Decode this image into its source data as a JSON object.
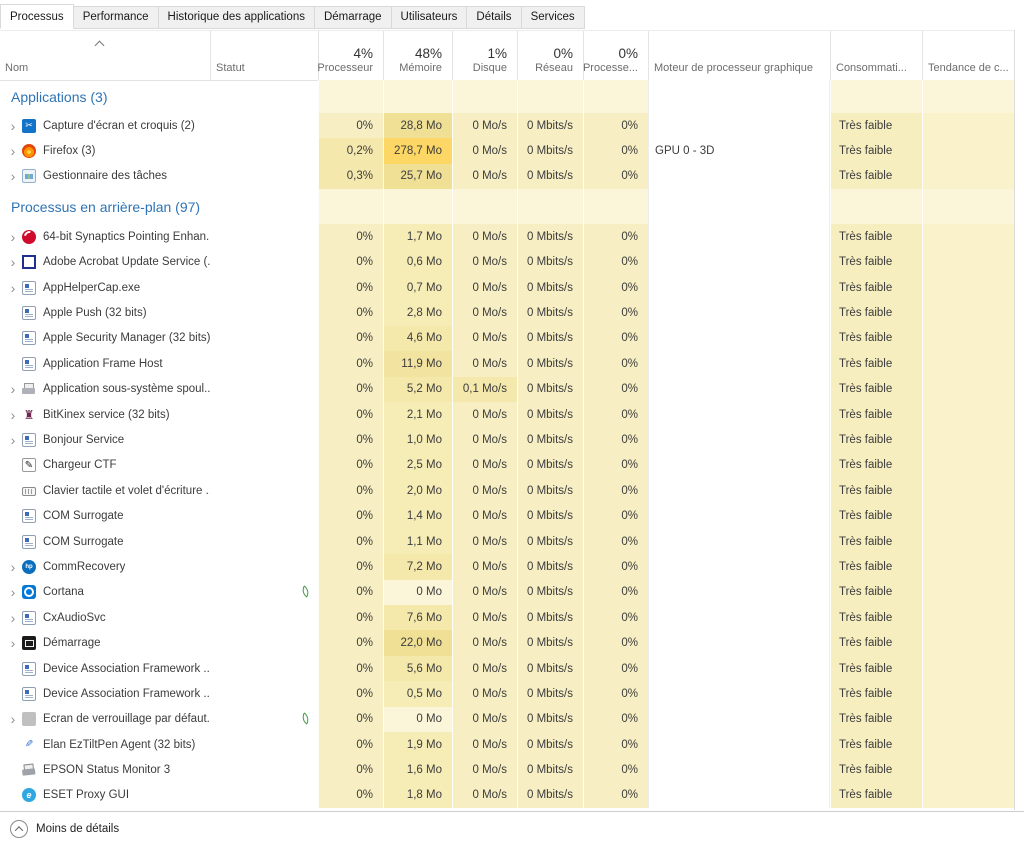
{
  "tabs": {
    "items": [
      {
        "label": "Processus",
        "active": true
      },
      {
        "label": "Performance",
        "active": false
      },
      {
        "label": "Historique des applications",
        "active": false
      },
      {
        "label": "Démarrage",
        "active": false
      },
      {
        "label": "Utilisateurs",
        "active": false
      },
      {
        "label": "Détails",
        "active": false
      },
      {
        "label": "Services",
        "active": false
      }
    ]
  },
  "header": {
    "nom": "Nom",
    "statut": "Statut",
    "cpu_pct": "4%",
    "cpu_label": "Processeur",
    "mem_pct": "48%",
    "mem_label": "Mémoire",
    "disk_pct": "1%",
    "disk_label": "Disque",
    "net_pct": "0%",
    "net_label": "Réseau",
    "gpu_pct": "0%",
    "gpu_label": "Processe...",
    "engine_label": "Moteur de processeur graphique",
    "power_label": "Consommati...",
    "trend_label": "Tendance de c...",
    "sort_icon": "sort-ascending-caret"
  },
  "sections": [
    {
      "label": "Applications (3)",
      "rows": [
        {
          "name": "Capture d'écran et croquis (2)",
          "icon": "snip-sketch-icon",
          "icon_class": "snip",
          "expandable": true,
          "suspended": false,
          "cpu": "0%",
          "mem": "28,8 Mo",
          "disk": "0 Mo/s",
          "net": "0 Mbits/s",
          "gpu": "0%",
          "gpu_engine": "",
          "power": "Très faible",
          "trend": ""
        },
        {
          "name": "Firefox (3)",
          "icon": "firefox-icon",
          "icon_class": "firefox",
          "expandable": true,
          "suspended": false,
          "cpu": "0,2%",
          "mem": "278,7 Mo",
          "disk": "0 Mo/s",
          "net": "0 Mbits/s",
          "gpu": "0%",
          "gpu_engine": "GPU 0 - 3D",
          "power": "Très faible",
          "trend": ""
        },
        {
          "name": "Gestionnaire des tâches",
          "icon": "task-manager-icon",
          "icon_class": "taskmgr",
          "expandable": true,
          "suspended": false,
          "cpu": "0,3%",
          "mem": "25,7 Mo",
          "disk": "0 Mo/s",
          "net": "0 Mbits/s",
          "gpu": "0%",
          "gpu_engine": "",
          "power": "Très faible",
          "trend": ""
        }
      ]
    },
    {
      "label": "Processus en arrière-plan (97)",
      "rows": [
        {
          "name": "64-bit Synaptics Pointing Enhan...",
          "icon": "synaptics-icon",
          "icon_class": "synaptics",
          "expandable": true,
          "suspended": false,
          "cpu": "0%",
          "mem": "1,7 Mo",
          "disk": "0 Mo/s",
          "net": "0 Mbits/s",
          "gpu": "0%",
          "gpu_engine": "",
          "power": "Très faible",
          "trend": ""
        },
        {
          "name": "Adobe Acrobat Update Service (...",
          "icon": "adobe-icon",
          "icon_class": "adobe",
          "expandable": true,
          "suspended": false,
          "cpu": "0%",
          "mem": "0,6 Mo",
          "disk": "0 Mo/s",
          "net": "0 Mbits/s",
          "gpu": "0%",
          "gpu_engine": "",
          "power": "Très faible",
          "trend": ""
        },
        {
          "name": "AppHelperCap.exe",
          "icon": "generic-exe-icon",
          "icon_class": "exe",
          "expandable": true,
          "suspended": false,
          "cpu": "0%",
          "mem": "0,7 Mo",
          "disk": "0 Mo/s",
          "net": "0 Mbits/s",
          "gpu": "0%",
          "gpu_engine": "",
          "power": "Très faible",
          "trend": ""
        },
        {
          "name": "Apple Push (32 bits)",
          "icon": "generic-exe-icon",
          "icon_class": "exe",
          "expandable": false,
          "suspended": false,
          "cpu": "0%",
          "mem": "2,8 Mo",
          "disk": "0 Mo/s",
          "net": "0 Mbits/s",
          "gpu": "0%",
          "gpu_engine": "",
          "power": "Très faible",
          "trend": ""
        },
        {
          "name": "Apple Security Manager (32 bits)",
          "icon": "generic-exe-icon",
          "icon_class": "exe",
          "expandable": false,
          "suspended": false,
          "cpu": "0%",
          "mem": "4,6 Mo",
          "disk": "0 Mo/s",
          "net": "0 Mbits/s",
          "gpu": "0%",
          "gpu_engine": "",
          "power": "Très faible",
          "trend": ""
        },
        {
          "name": "Application Frame Host",
          "icon": "generic-exe-icon",
          "icon_class": "exe",
          "expandable": false,
          "suspended": false,
          "cpu": "0%",
          "mem": "11,9 Mo",
          "disk": "0 Mo/s",
          "net": "0 Mbits/s",
          "gpu": "0%",
          "gpu_engine": "",
          "power": "Très faible",
          "trend": ""
        },
        {
          "name": "Application sous-système spoul...",
          "icon": "printer-icon",
          "icon_class": "printer",
          "expandable": true,
          "suspended": false,
          "cpu": "0%",
          "mem": "5,2 Mo",
          "disk": "0,1 Mo/s",
          "net": "0 Mbits/s",
          "gpu": "0%",
          "gpu_engine": "",
          "power": "Très faible",
          "trend": ""
        },
        {
          "name": "BitKinex service (32 bits)",
          "icon": "bitkinex-icon",
          "icon_class": "bitkinex",
          "expandable": true,
          "suspended": false,
          "cpu": "0%",
          "mem": "2,1 Mo",
          "disk": "0 Mo/s",
          "net": "0 Mbits/s",
          "gpu": "0%",
          "gpu_engine": "",
          "power": "Très faible",
          "trend": ""
        },
        {
          "name": "Bonjour Service",
          "icon": "generic-exe-icon",
          "icon_class": "exe",
          "expandable": true,
          "suspended": false,
          "cpu": "0%",
          "mem": "1,0 Mo",
          "disk": "0 Mo/s",
          "net": "0 Mbits/s",
          "gpu": "0%",
          "gpu_engine": "",
          "power": "Très faible",
          "trend": ""
        },
        {
          "name": "Chargeur CTF",
          "icon": "pen-icon",
          "icon_class": "ctf",
          "expandable": false,
          "suspended": false,
          "cpu": "0%",
          "mem": "2,5 Mo",
          "disk": "0 Mo/s",
          "net": "0 Mbits/s",
          "gpu": "0%",
          "gpu_engine": "",
          "power": "Très faible",
          "trend": ""
        },
        {
          "name": "Clavier tactile et volet d'écriture ...",
          "icon": "keyboard-icon",
          "icon_class": "keyboard",
          "expandable": false,
          "suspended": false,
          "cpu": "0%",
          "mem": "2,0 Mo",
          "disk": "0 Mo/s",
          "net": "0 Mbits/s",
          "gpu": "0%",
          "gpu_engine": "",
          "power": "Très faible",
          "trend": ""
        },
        {
          "name": "COM Surrogate",
          "icon": "generic-exe-icon",
          "icon_class": "exe",
          "expandable": false,
          "suspended": false,
          "cpu": "0%",
          "mem": "1,4 Mo",
          "disk": "0 Mo/s",
          "net": "0 Mbits/s",
          "gpu": "0%",
          "gpu_engine": "",
          "power": "Très faible",
          "trend": ""
        },
        {
          "name": "COM Surrogate",
          "icon": "generic-exe-icon",
          "icon_class": "exe",
          "expandable": false,
          "suspended": false,
          "cpu": "0%",
          "mem": "1,1 Mo",
          "disk": "0 Mo/s",
          "net": "0 Mbits/s",
          "gpu": "0%",
          "gpu_engine": "",
          "power": "Très faible",
          "trend": ""
        },
        {
          "name": "CommRecovery",
          "icon": "hp-icon",
          "icon_class": "hp",
          "expandable": true,
          "suspended": false,
          "cpu": "0%",
          "mem": "7,2 Mo",
          "disk": "0 Mo/s",
          "net": "0 Mbits/s",
          "gpu": "0%",
          "gpu_engine": "",
          "power": "Très faible",
          "trend": ""
        },
        {
          "name": "Cortana",
          "icon": "cortana-icon",
          "icon_class": "cortana",
          "expandable": true,
          "suspended": true,
          "cpu": "0%",
          "mem": "0 Mo",
          "disk": "0 Mo/s",
          "net": "0 Mbits/s",
          "gpu": "0%",
          "gpu_engine": "",
          "power": "Très faible",
          "trend": ""
        },
        {
          "name": "CxAudioSvc",
          "icon": "generic-exe-icon",
          "icon_class": "exe",
          "expandable": true,
          "suspended": false,
          "cpu": "0%",
          "mem": "7,6 Mo",
          "disk": "0 Mo/s",
          "net": "0 Mbits/s",
          "gpu": "0%",
          "gpu_engine": "",
          "power": "Très faible",
          "trend": ""
        },
        {
          "name": "Démarrage",
          "icon": "startup-icon",
          "icon_class": "demarrage",
          "expandable": true,
          "suspended": false,
          "cpu": "0%",
          "mem": "22,0 Mo",
          "disk": "0 Mo/s",
          "net": "0 Mbits/s",
          "gpu": "0%",
          "gpu_engine": "",
          "power": "Très faible",
          "trend": ""
        },
        {
          "name": "Device Association Framework ...",
          "icon": "generic-exe-icon",
          "icon_class": "exe",
          "expandable": false,
          "suspended": false,
          "cpu": "0%",
          "mem": "5,6 Mo",
          "disk": "0 Mo/s",
          "net": "0 Mbits/s",
          "gpu": "0%",
          "gpu_engine": "",
          "power": "Très faible",
          "trend": ""
        },
        {
          "name": "Device Association Framework ...",
          "icon": "generic-exe-icon",
          "icon_class": "exe",
          "expandable": false,
          "suspended": false,
          "cpu": "0%",
          "mem": "0,5 Mo",
          "disk": "0 Mo/s",
          "net": "0 Mbits/s",
          "gpu": "0%",
          "gpu_engine": "",
          "power": "Très faible",
          "trend": ""
        },
        {
          "name": "Écran de verrouillage par défaut...",
          "icon": "lock-screen-icon",
          "icon_class": "gray",
          "expandable": true,
          "suspended": true,
          "cpu": "0%",
          "mem": "0 Mo",
          "disk": "0 Mo/s",
          "net": "0 Mbits/s",
          "gpu": "0%",
          "gpu_engine": "",
          "power": "Très faible",
          "trend": ""
        },
        {
          "name": "Elan EzTiltPen Agent (32 bits)",
          "icon": "stylus-icon",
          "icon_class": "elan",
          "expandable": false,
          "suspended": false,
          "cpu": "0%",
          "mem": "1,9 Mo",
          "disk": "0 Mo/s",
          "net": "0 Mbits/s",
          "gpu": "0%",
          "gpu_engine": "",
          "power": "Très faible",
          "trend": ""
        },
        {
          "name": "EPSON Status Monitor 3",
          "icon": "epson-printer-icon",
          "icon_class": "epson",
          "expandable": false,
          "suspended": false,
          "cpu": "0%",
          "mem": "1,6 Mo",
          "disk": "0 Mo/s",
          "net": "0 Mbits/s",
          "gpu": "0%",
          "gpu_engine": "",
          "power": "Très faible",
          "trend": ""
        },
        {
          "name": "ESET Proxy GUI",
          "icon": "eset-icon",
          "icon_class": "eset",
          "expandable": false,
          "suspended": false,
          "cpu": "0%",
          "mem": "1,8 Mo",
          "disk": "0 Mo/s",
          "net": "0 Mbits/s",
          "gpu": "0%",
          "gpu_engine": "",
          "power": "Très faible",
          "trend": ""
        }
      ]
    }
  ],
  "footer": {
    "label": "Moins de détails",
    "icon": "chevron-up-circle-icon"
  },
  "status_legend": {
    "suspended_icon": "leaf-icon"
  },
  "colors": {
    "section_text": "#2e74b5",
    "heat_section": "#fbf5da",
    "heat_base": "#f7efc3",
    "heat_active": "#f4e8ad",
    "heat_mem_0": "#fbf5da",
    "heat_mem_1": "#f6ecb6",
    "heat_mem_2": "#f4e8ab",
    "heat_mem_3": "#f2e3a0",
    "heat_mem_4": "#f0e096",
    "heat_mem_hot": "#fcd765",
    "heat_power": "#f6eebf",
    "heat_trend": "#f9f2cb",
    "suspended_leaf": "#3f9b46"
  }
}
